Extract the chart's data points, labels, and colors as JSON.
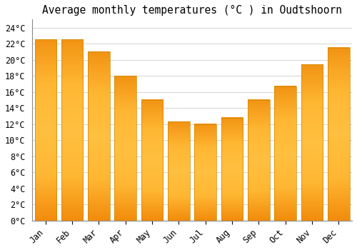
{
  "months": [
    "Jan",
    "Feb",
    "Mar",
    "Apr",
    "May",
    "Jun",
    "Jul",
    "Aug",
    "Sep",
    "Oct",
    "Nov",
    "Dec"
  ],
  "values": [
    22.5,
    22.5,
    21.0,
    18.0,
    15.0,
    12.3,
    12.0,
    12.8,
    15.0,
    16.7,
    19.4,
    21.5
  ],
  "title": "Average monthly temperatures (°C ) in Oudtshoorn",
  "ylim": [
    0,
    25
  ],
  "yticks": [
    0,
    2,
    4,
    6,
    8,
    10,
    12,
    14,
    16,
    18,
    20,
    22,
    24
  ],
  "bar_color_main": "#FFA818",
  "bar_color_edge": "#E08800",
  "background_color": "#FFFFFF",
  "grid_color": "#CCCCCC",
  "title_fontsize": 10.5,
  "tick_fontsize": 8.5,
  "bar_width": 0.82
}
